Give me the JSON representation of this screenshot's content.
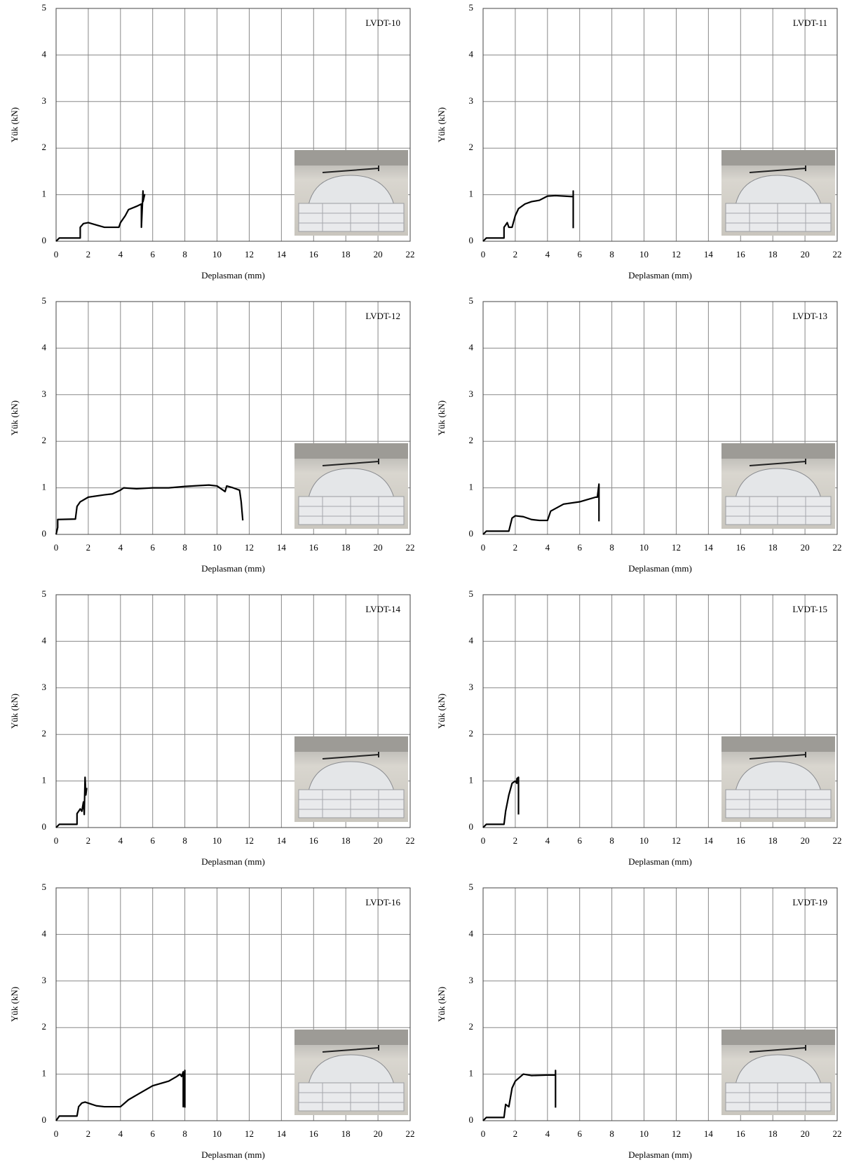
{
  "chart_data": [
    {
      "type": "line",
      "title": "LVDT-10",
      "xlabel": "Deplasman (mm)",
      "ylabel": "Yük (kN)",
      "color": "#000000",
      "grid": true,
      "xlim": [
        0,
        22
      ],
      "ylim": [
        0,
        5
      ],
      "xticks": [
        0,
        2,
        4,
        6,
        8,
        10,
        12,
        14,
        16,
        18,
        20,
        22
      ],
      "yticks": [
        0,
        1,
        2,
        3,
        4,
        5
      ],
      "x": [
        0,
        0.2,
        1.5,
        1.5,
        1.7,
        2,
        2.5,
        3,
        3.9,
        4,
        4.3,
        4.5,
        5,
        5.3,
        5.3,
        5.4,
        5.4,
        5.5,
        5.4
      ],
      "values": [
        0,
        0.07,
        0.07,
        0.3,
        0.38,
        0.4,
        0.35,
        0.3,
        0.3,
        0.4,
        0.55,
        0.68,
        0.75,
        0.8,
        0.3,
        1.08,
        0.85,
        1.0,
        0.9
      ]
    },
    {
      "type": "line",
      "title": "LVDT-11",
      "xlabel": "Deplasman (mm)",
      "ylabel": "Yük (kN)",
      "color": "#000000",
      "grid": true,
      "xlim": [
        0,
        22
      ],
      "ylim": [
        0,
        5
      ],
      "xticks": [
        0,
        2,
        4,
        6,
        8,
        10,
        12,
        14,
        16,
        18,
        20,
        22
      ],
      "yticks": [
        0,
        1,
        2,
        3,
        4,
        5
      ],
      "x": [
        0,
        0.2,
        1.3,
        1.3,
        1.5,
        1.6,
        1.8,
        2,
        2.2,
        2.6,
        3,
        3.5,
        4,
        4.5,
        5.5,
        5.6,
        5.6,
        5.6
      ],
      "values": [
        0,
        0.07,
        0.07,
        0.3,
        0.4,
        0.3,
        0.3,
        0.55,
        0.7,
        0.8,
        0.85,
        0.88,
        0.97,
        0.98,
        0.96,
        0.96,
        1.08,
        0.28
      ]
    },
    {
      "type": "line",
      "title": "LVDT-12",
      "xlabel": "Deplasman (mm)",
      "ylabel": "Yük (kN)",
      "color": "#000000",
      "grid": true,
      "xlim": [
        0,
        22
      ],
      "ylim": [
        0,
        5
      ],
      "xticks": [
        0,
        2,
        4,
        6,
        8,
        10,
        12,
        14,
        16,
        18,
        20,
        22
      ],
      "yticks": [
        0,
        1,
        2,
        3,
        4,
        5
      ],
      "x": [
        0,
        0.1,
        0.1,
        1.2,
        1.3,
        1.5,
        2,
        3,
        3.5,
        4,
        4.2,
        5,
        6,
        7,
        8,
        9,
        9.5,
        10,
        10.5,
        10.6,
        11,
        11.4,
        11.5,
        11.6
      ],
      "values": [
        0,
        0.15,
        0.32,
        0.33,
        0.6,
        0.7,
        0.8,
        0.85,
        0.87,
        0.95,
        1.0,
        0.98,
        1.0,
        1.0,
        1.03,
        1.05,
        1.06,
        1.04,
        0.92,
        1.04,
        1.0,
        0.95,
        0.7,
        0.3
      ]
    },
    {
      "type": "line",
      "title": "LVDT-13",
      "xlabel": "Deplasman (mm)",
      "ylabel": "Yük (kN)",
      "color": "#000000",
      "grid": true,
      "xlim": [
        0,
        22
      ],
      "ylim": [
        0,
        5
      ],
      "xticks": [
        0,
        2,
        4,
        6,
        8,
        10,
        12,
        14,
        16,
        18,
        20,
        22
      ],
      "yticks": [
        0,
        1,
        2,
        3,
        4,
        5
      ],
      "x": [
        0,
        0.2,
        1.6,
        1.8,
        2,
        2.5,
        3,
        3.5,
        4,
        4.2,
        5,
        6,
        6.5,
        7,
        7.1,
        7.2,
        7.2
      ],
      "values": [
        0,
        0.07,
        0.07,
        0.35,
        0.4,
        0.38,
        0.32,
        0.3,
        0.3,
        0.5,
        0.65,
        0.7,
        0.75,
        0.8,
        0.8,
        1.08,
        0.28
      ]
    },
    {
      "type": "line",
      "title": "LVDT-14",
      "xlabel": "Deplasman (mm)",
      "ylabel": "Yük (kN)",
      "color": "#000000",
      "grid": true,
      "xlim": [
        0,
        22
      ],
      "ylim": [
        0,
        5
      ],
      "xticks": [
        0,
        2,
        4,
        6,
        8,
        10,
        12,
        14,
        16,
        18,
        20,
        22
      ],
      "yticks": [
        0,
        1,
        2,
        3,
        4,
        5
      ],
      "x": [
        0,
        0.2,
        1.3,
        1.3,
        1.5,
        1.6,
        1.7,
        1.75,
        1.8,
        1.85,
        1.9
      ],
      "values": [
        0,
        0.07,
        0.07,
        0.3,
        0.4,
        0.35,
        0.55,
        0.28,
        1.08,
        0.7,
        0.85
      ]
    },
    {
      "type": "line",
      "title": "LVDT-15",
      "xlabel": "Deplasman (mm)",
      "ylabel": "Yük (kN)",
      "color": "#000000",
      "grid": true,
      "xlim": [
        0,
        22
      ],
      "ylim": [
        0,
        5
      ],
      "xticks": [
        0,
        2,
        4,
        6,
        8,
        10,
        12,
        14,
        16,
        18,
        20,
        22
      ],
      "yticks": [
        0,
        1,
        2,
        3,
        4,
        5
      ],
      "x": [
        0,
        0.2,
        1.3,
        1.4,
        1.6,
        1.8,
        2,
        2.1,
        2.1,
        2.2,
        2.2
      ],
      "values": [
        0,
        0.07,
        0.07,
        0.35,
        0.7,
        0.95,
        1.0,
        0.95,
        1.05,
        1.08,
        0.28
      ]
    },
    {
      "type": "line",
      "title": "LVDT-16",
      "xlabel": "Deplasman (mm)",
      "ylabel": "Yük (kN)",
      "color": "#000000",
      "grid": true,
      "xlim": [
        0,
        22
      ],
      "ylim": [
        0,
        5
      ],
      "xticks": [
        0,
        2,
        4,
        6,
        8,
        10,
        12,
        14,
        16,
        18,
        20,
        22
      ],
      "yticks": [
        0,
        1,
        2,
        3,
        4,
        5
      ],
      "x": [
        0,
        0.2,
        1.3,
        1.4,
        1.6,
        1.8,
        2.5,
        3,
        4,
        4.5,
        5,
        5.5,
        6,
        7,
        7.5,
        7.7,
        7.8,
        7.9,
        7.9,
        8,
        8
      ],
      "values": [
        0,
        0.1,
        0.1,
        0.3,
        0.38,
        0.4,
        0.32,
        0.3,
        0.3,
        0.45,
        0.55,
        0.65,
        0.75,
        0.85,
        0.95,
        1.0,
        0.95,
        1.05,
        0.3,
        1.08,
        0.28
      ]
    },
    {
      "type": "line",
      "title": "LVDT-19",
      "xlabel": "Deplasman (mm)",
      "ylabel": "Yük (kN)",
      "color": "#000000",
      "grid": true,
      "xlim": [
        0,
        22
      ],
      "ylim": [
        0,
        5
      ],
      "xticks": [
        0,
        2,
        4,
        6,
        8,
        10,
        12,
        14,
        16,
        18,
        20,
        22
      ],
      "yticks": [
        0,
        1,
        2,
        3,
        4,
        5
      ],
      "x": [
        0,
        0.2,
        1.3,
        1.4,
        1.6,
        1.8,
        2,
        2.5,
        3,
        4,
        4.5,
        4.5,
        4.5
      ],
      "values": [
        0,
        0.07,
        0.07,
        0.35,
        0.3,
        0.7,
        0.85,
        1.0,
        0.97,
        0.98,
        0.98,
        1.08,
        0.28
      ]
    }
  ]
}
